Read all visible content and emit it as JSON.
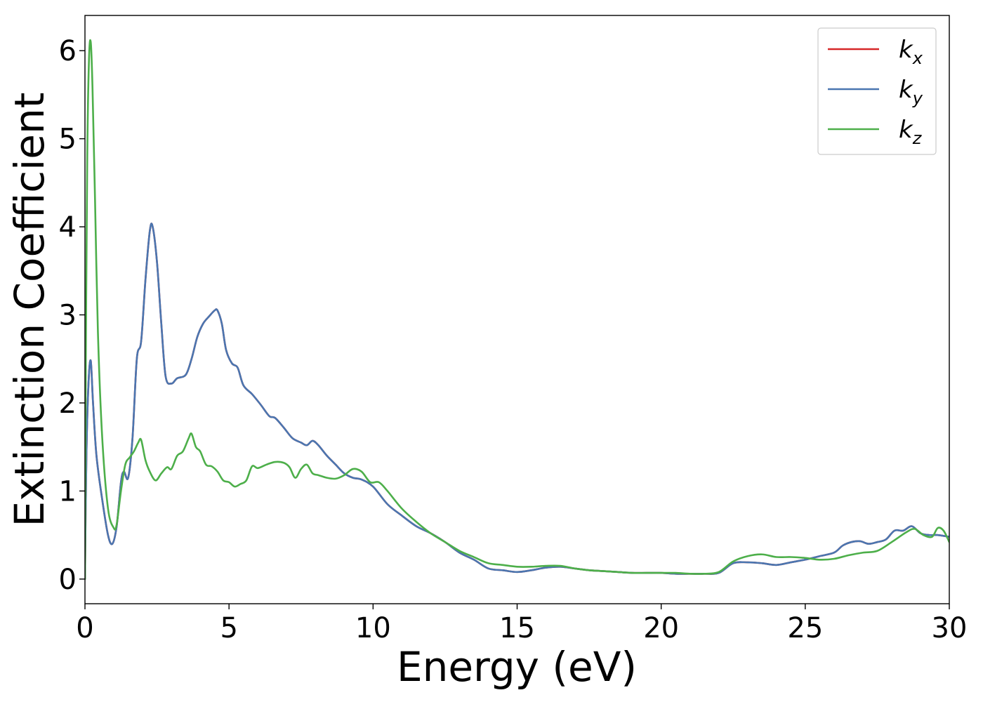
{
  "chart_data": {
    "type": "line",
    "title": "",
    "xlabel": "Energy (eV)",
    "ylabel": "Extinction Coefficient",
    "xlim": [
      0,
      30
    ],
    "ylim": [
      -0.28,
      6.4
    ],
    "xticks": [
      0,
      5,
      10,
      15,
      20,
      25,
      30
    ],
    "yticks": [
      0,
      1,
      2,
      3,
      4,
      5,
      6
    ],
    "grid": false,
    "legend_position": "top-right",
    "series": [
      {
        "name": "k",
        "subscript": "x",
        "color": "#d62728",
        "x": [
          0,
          0.05,
          0.12,
          0.2,
          0.28,
          0.4,
          0.6,
          0.8,
          0.95,
          1.1,
          1.25,
          1.35,
          1.5,
          1.65,
          1.8,
          1.95,
          2.1,
          2.25,
          2.35,
          2.5,
          2.65,
          2.8,
          3.0,
          3.2,
          3.5,
          3.7,
          3.9,
          4.1,
          4.3,
          4.5,
          4.6,
          4.75,
          4.9,
          5.1,
          5.3,
          5.5,
          5.8,
          6.1,
          6.4,
          6.6,
          6.9,
          7.2,
          7.5,
          7.7,
          7.9,
          8.1,
          8.4,
          8.7,
          9.0,
          9.3,
          9.6,
          10.0,
          10.5,
          11.0,
          11.5,
          12.0,
          12.5,
          13.0,
          13.5,
          14.0,
          14.5,
          15.0,
          15.5,
          16.0,
          16.5,
          17.0,
          17.5,
          18.0,
          18.5,
          19.0,
          19.5,
          20.0,
          20.5,
          21.0,
          21.5,
          22.0,
          22.5,
          23.0,
          23.5,
          24.0,
          24.5,
          25.0,
          25.5,
          26.0,
          26.3,
          26.6,
          26.9,
          27.2,
          27.5,
          27.8,
          28.1,
          28.4,
          28.7,
          29.0,
          29.3,
          29.6,
          30.0
        ],
        "values": [
          0.0,
          1.4,
          2.2,
          2.48,
          2.0,
          1.4,
          0.9,
          0.5,
          0.4,
          0.6,
          1.1,
          1.22,
          1.15,
          1.6,
          2.5,
          2.7,
          3.4,
          3.95,
          4.0,
          3.6,
          2.9,
          2.3,
          2.22,
          2.28,
          2.32,
          2.5,
          2.75,
          2.9,
          2.98,
          3.05,
          3.05,
          2.9,
          2.6,
          2.45,
          2.4,
          2.2,
          2.1,
          1.98,
          1.85,
          1.83,
          1.72,
          1.6,
          1.55,
          1.52,
          1.57,
          1.52,
          1.4,
          1.3,
          1.2,
          1.15,
          1.13,
          1.05,
          0.85,
          0.72,
          0.6,
          0.52,
          0.42,
          0.3,
          0.22,
          0.12,
          0.1,
          0.08,
          0.1,
          0.13,
          0.14,
          0.12,
          0.1,
          0.09,
          0.08,
          0.07,
          0.07,
          0.07,
          0.06,
          0.06,
          0.06,
          0.07,
          0.18,
          0.19,
          0.18,
          0.16,
          0.19,
          0.22,
          0.26,
          0.3,
          0.38,
          0.42,
          0.43,
          0.4,
          0.42,
          0.45,
          0.55,
          0.55,
          0.6,
          0.52,
          0.5,
          0.5,
          0.48
        ]
      },
      {
        "name": "k",
        "subscript": "y",
        "color": "#4a76b0",
        "x": [
          0,
          0.05,
          0.12,
          0.2,
          0.28,
          0.4,
          0.6,
          0.8,
          0.95,
          1.1,
          1.25,
          1.35,
          1.5,
          1.65,
          1.8,
          1.95,
          2.1,
          2.25,
          2.35,
          2.5,
          2.65,
          2.8,
          3.0,
          3.2,
          3.5,
          3.7,
          3.9,
          4.1,
          4.3,
          4.5,
          4.6,
          4.75,
          4.9,
          5.1,
          5.3,
          5.5,
          5.8,
          6.1,
          6.4,
          6.6,
          6.9,
          7.2,
          7.5,
          7.7,
          7.9,
          8.1,
          8.4,
          8.7,
          9.0,
          9.3,
          9.6,
          10.0,
          10.5,
          11.0,
          11.5,
          12.0,
          12.5,
          13.0,
          13.5,
          14.0,
          14.5,
          15.0,
          15.5,
          16.0,
          16.5,
          17.0,
          17.5,
          18.0,
          18.5,
          19.0,
          19.5,
          20.0,
          20.5,
          21.0,
          21.5,
          22.0,
          22.5,
          23.0,
          23.5,
          24.0,
          24.5,
          25.0,
          25.5,
          26.0,
          26.3,
          26.6,
          26.9,
          27.2,
          27.5,
          27.8,
          28.1,
          28.4,
          28.7,
          29.0,
          29.3,
          29.6,
          30.0
        ],
        "values": [
          0.0,
          1.4,
          2.2,
          2.48,
          2.0,
          1.4,
          0.9,
          0.5,
          0.4,
          0.6,
          1.1,
          1.22,
          1.15,
          1.6,
          2.5,
          2.7,
          3.4,
          3.95,
          4.0,
          3.6,
          2.9,
          2.3,
          2.22,
          2.28,
          2.32,
          2.5,
          2.75,
          2.9,
          2.98,
          3.05,
          3.05,
          2.9,
          2.6,
          2.45,
          2.4,
          2.2,
          2.1,
          1.98,
          1.85,
          1.83,
          1.72,
          1.6,
          1.55,
          1.52,
          1.57,
          1.52,
          1.4,
          1.3,
          1.2,
          1.15,
          1.13,
          1.05,
          0.85,
          0.72,
          0.6,
          0.52,
          0.42,
          0.3,
          0.22,
          0.12,
          0.1,
          0.08,
          0.1,
          0.13,
          0.14,
          0.12,
          0.1,
          0.09,
          0.08,
          0.07,
          0.07,
          0.07,
          0.06,
          0.06,
          0.06,
          0.07,
          0.18,
          0.19,
          0.18,
          0.16,
          0.19,
          0.22,
          0.26,
          0.3,
          0.38,
          0.42,
          0.43,
          0.4,
          0.42,
          0.45,
          0.55,
          0.55,
          0.6,
          0.52,
          0.5,
          0.5,
          0.48
        ]
      },
      {
        "name": "k",
        "subscript": "z",
        "color": "#4daf4a",
        "x": [
          0,
          0.03,
          0.08,
          0.14,
          0.2,
          0.26,
          0.35,
          0.45,
          0.6,
          0.8,
          1.0,
          1.1,
          1.25,
          1.4,
          1.55,
          1.7,
          1.85,
          1.95,
          2.1,
          2.25,
          2.45,
          2.65,
          2.85,
          3.0,
          3.2,
          3.4,
          3.6,
          3.7,
          3.85,
          4.0,
          4.2,
          4.4,
          4.6,
          4.8,
          5.0,
          5.2,
          5.4,
          5.6,
          5.8,
          6.0,
          6.3,
          6.6,
          6.9,
          7.1,
          7.3,
          7.5,
          7.7,
          7.9,
          8.1,
          8.4,
          8.7,
          9.0,
          9.3,
          9.6,
          9.9,
          10.2,
          10.5,
          11.0,
          11.5,
          12.0,
          12.5,
          13.0,
          13.5,
          14.0,
          14.5,
          15.0,
          15.5,
          16.0,
          16.5,
          17.0,
          17.5,
          18.0,
          18.5,
          19.0,
          19.5,
          20.0,
          20.5,
          21.0,
          21.5,
          22.0,
          22.5,
          23.0,
          23.5,
          24.0,
          24.5,
          25.0,
          25.5,
          26.0,
          26.5,
          27.0,
          27.5,
          28.0,
          28.5,
          28.8,
          29.1,
          29.4,
          29.6,
          29.8,
          30.0
        ],
        "values": [
          0.0,
          2.5,
          4.8,
          5.9,
          6.1,
          5.6,
          4.3,
          2.8,
          1.6,
          0.8,
          0.58,
          0.62,
          1.0,
          1.3,
          1.38,
          1.45,
          1.55,
          1.58,
          1.35,
          1.22,
          1.12,
          1.2,
          1.27,
          1.25,
          1.4,
          1.45,
          1.6,
          1.65,
          1.5,
          1.45,
          1.3,
          1.28,
          1.22,
          1.12,
          1.1,
          1.05,
          1.08,
          1.12,
          1.28,
          1.26,
          1.3,
          1.33,
          1.32,
          1.27,
          1.15,
          1.25,
          1.3,
          1.2,
          1.18,
          1.15,
          1.14,
          1.18,
          1.25,
          1.22,
          1.1,
          1.1,
          1.0,
          0.8,
          0.65,
          0.52,
          0.42,
          0.32,
          0.25,
          0.18,
          0.16,
          0.14,
          0.14,
          0.15,
          0.15,
          0.12,
          0.1,
          0.09,
          0.08,
          0.07,
          0.07,
          0.07,
          0.07,
          0.06,
          0.06,
          0.08,
          0.2,
          0.26,
          0.28,
          0.25,
          0.25,
          0.24,
          0.22,
          0.23,
          0.27,
          0.3,
          0.32,
          0.42,
          0.53,
          0.57,
          0.5,
          0.48,
          0.58,
          0.55,
          0.42
        ]
      }
    ]
  }
}
